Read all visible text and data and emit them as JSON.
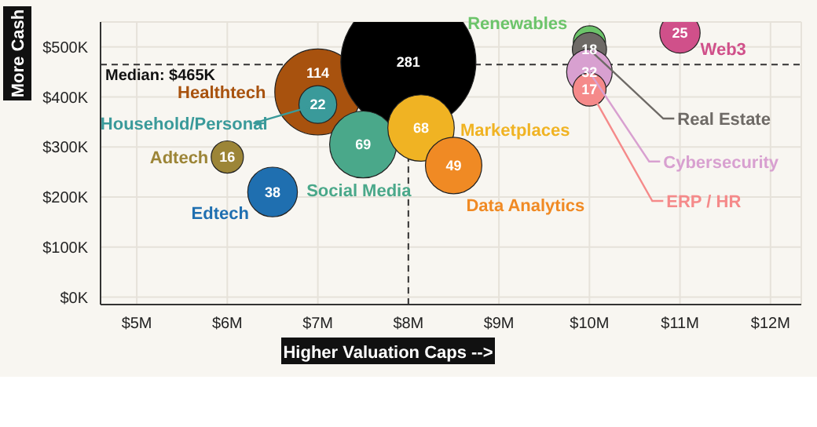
{
  "chart_data": {
    "type": "bubble",
    "xlabel": "Higher Valuation Caps -->",
    "ylabel": "More Cash",
    "xlim": [
      4.6,
      12.34
    ],
    "ylim": [
      -15,
      550
    ],
    "xticks": [
      {
        "value": 5,
        "label": "$5M"
      },
      {
        "value": 6,
        "label": "$6M"
      },
      {
        "value": 7,
        "label": "$7M"
      },
      {
        "value": 8,
        "label": "$8M"
      },
      {
        "value": 9,
        "label": "$9M"
      },
      {
        "value": 10,
        "label": "$10M"
      },
      {
        "value": 11,
        "label": "$11M"
      },
      {
        "value": 12,
        "label": "$12M"
      }
    ],
    "yticks": [
      {
        "value": 0,
        "label": "$0K"
      },
      {
        "value": 100,
        "label": "$100K"
      },
      {
        "value": 200,
        "label": "$200K"
      },
      {
        "value": 300,
        "label": "$300K"
      },
      {
        "value": 400,
        "label": "$400K"
      },
      {
        "value": 500,
        "label": "$500K"
      }
    ],
    "grid": true,
    "legend": false,
    "ref_lines": [
      {
        "axis": "y",
        "value": 465,
        "label": "Median: $465K",
        "line_style": "dashed",
        "color": "#333333"
      },
      {
        "axis": "x",
        "value": 8,
        "line_style": "dashed",
        "color": "#333333"
      }
    ],
    "series": [
      {
        "name": "Healthtech",
        "color": "#a8520e",
        "x": [
          7.0
        ],
        "values": [
          410
        ],
        "sizes": [
          114
        ],
        "value_labels": [
          "114"
        ]
      },
      {
        "name": "Household/Personal",
        "color": "#3a9a9a",
        "x": [
          7.0
        ],
        "values": [
          385
        ],
        "sizes": [
          22
        ],
        "value_labels": [
          "22"
        ]
      },
      {
        "name": "Adtech",
        "color": "#9c8537",
        "x": [
          6.0
        ],
        "values": [
          280
        ],
        "sizes": [
          16
        ],
        "value_labels": [
          "16"
        ]
      },
      {
        "name": "Edtech",
        "color": "#1f6fb0",
        "x": [
          6.5
        ],
        "values": [
          210
        ],
        "sizes": [
          38
        ],
        "value_labels": [
          "38"
        ]
      },
      {
        "color": "#000000",
        "x": [
          8.0
        ],
        "values": [
          470
        ],
        "sizes": [
          281
        ],
        "value_labels": [
          "281"
        ]
      },
      {
        "name": "Social Media",
        "color": "#4aa88a",
        "x": [
          7.5
        ],
        "values": [
          305
        ],
        "sizes": [
          69
        ],
        "value_labels": [
          "69"
        ]
      },
      {
        "name": "Marketplaces",
        "color": "#f0b323",
        "x": [
          8.14
        ],
        "values": [
          338
        ],
        "sizes": [
          68
        ],
        "value_labels": [
          "68"
        ]
      },
      {
        "name": "Data Analytics",
        "color": "#f08a24",
        "x": [
          8.5
        ],
        "values": [
          263
        ],
        "sizes": [
          49
        ],
        "value_labels": [
          "49"
        ]
      },
      {
        "name": "Renewables",
        "color": "#6cc46a",
        "x": [
          10.0
        ],
        "values": [
          510
        ],
        "sizes": [
          null
        ],
        "value_labels": [
          null
        ]
      },
      {
        "name": "Real Estate",
        "color": "#6e6a66",
        "x": [
          10.0
        ],
        "values": [
          495
        ],
        "sizes": [
          18
        ],
        "value_labels": [
          "18"
        ]
      },
      {
        "name": "Cybersecurity",
        "color": "#d8a0d0",
        "x": [
          10.0
        ],
        "values": [
          450
        ],
        "sizes": [
          32
        ],
        "value_labels": [
          "32"
        ]
      },
      {
        "name": "ERP / HR",
        "color": "#f58a8a",
        "x": [
          10.0
        ],
        "values": [
          415
        ],
        "sizes": [
          17
        ],
        "value_labels": [
          "17"
        ]
      },
      {
        "name": "Web3",
        "color": "#d0508a",
        "x": [
          11.0
        ],
        "values": [
          528
        ],
        "sizes": [
          25
        ],
        "value_labels": [
          "25"
        ]
      }
    ]
  }
}
